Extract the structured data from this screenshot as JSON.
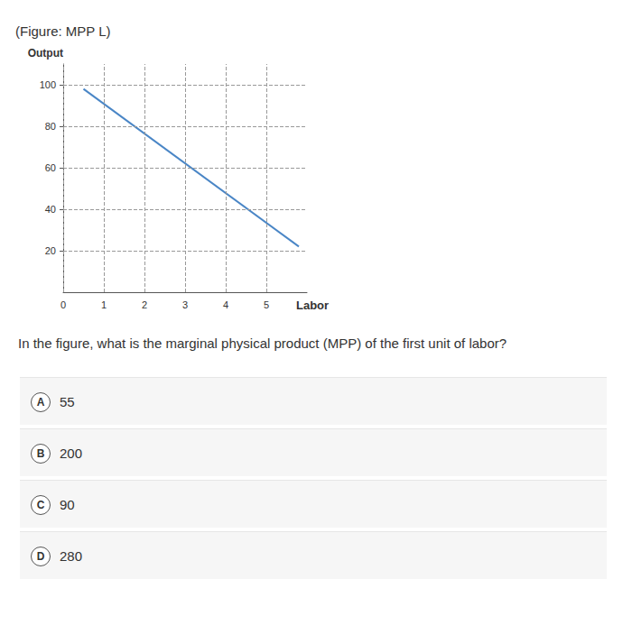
{
  "chart_data": {
    "type": "line",
    "title": "(Figure: MPP L)",
    "x_label": "Labor",
    "y_label": "Output",
    "x": [
      0.5,
      5.8
    ],
    "values": [
      98,
      22
    ],
    "color": "#4a86c6",
    "xlim": [
      0,
      6
    ],
    "xticks": [
      0,
      1,
      2,
      3,
      4,
      5
    ],
    "ylim": [
      0,
      110
    ],
    "yticks": [
      20,
      40,
      60,
      80,
      100
    ],
    "grid": true
  },
  "question": "In the figure, what is the marginal physical product (MPP) of the first unit of labor?",
  "options": [
    {
      "letter": "A",
      "text": "55"
    },
    {
      "letter": "B",
      "text": "200"
    },
    {
      "letter": "C",
      "text": "90"
    },
    {
      "letter": "D",
      "text": "280"
    }
  ]
}
